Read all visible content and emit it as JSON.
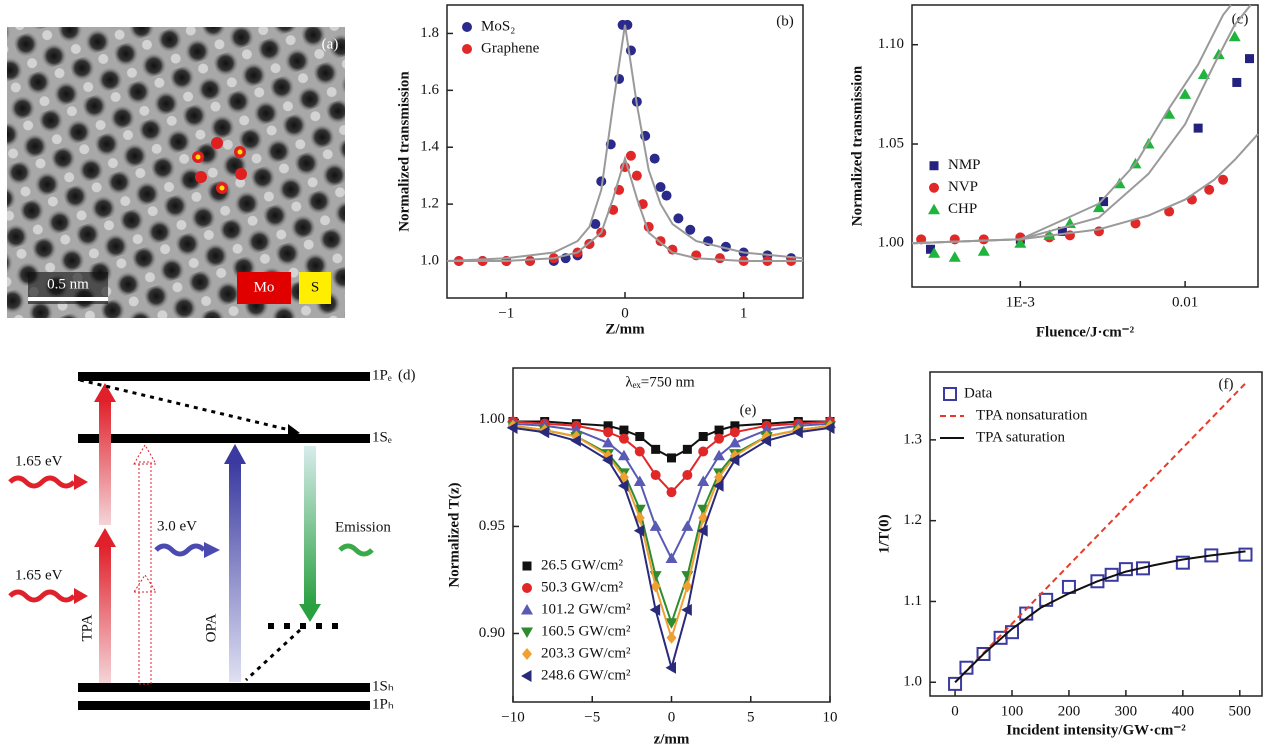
{
  "image_panel": {
    "label": "(a)",
    "scale_bar": "0.5 nm",
    "legend": [
      "Mo",
      "S"
    ]
  },
  "diagram_panel": {
    "label": "(d)",
    "levels": [
      "1Pₑ",
      "1Sₑ",
      "1Sₕ",
      "1Pₕ"
    ],
    "annotations": [
      "1.65 eV",
      "1.65 eV",
      "3.0 eV",
      "Emission",
      "TPA",
      "OPA"
    ]
  },
  "chart_data": [
    {
      "type": "scatter",
      "panel_label": "(b)",
      "x_label": "Z/mm",
      "y_label": "Normalized transmission",
      "xlim": [
        -1.5,
        1.5
      ],
      "xticks": [
        {
          "value": -1,
          "label": "−1"
        },
        0,
        1
      ],
      "ylim": [
        0.87,
        1.9
      ],
      "yticks": [
        {
          "value": 1,
          "label": "1.0"
        },
        1.2,
        1.4,
        1.6,
        1.8
      ],
      "legend": "upper left",
      "series": [
        {
          "name": "MoS₂",
          "color": "#2a2a8c",
          "marker": "circle",
          "x": [
            -1.4,
            -1.2,
            -1.0,
            -0.8,
            -0.6,
            -0.5,
            -0.4,
            -0.3,
            -0.25,
            -0.2,
            -0.12,
            -0.05,
            -0.02,
            0.02,
            0.05,
            0.1,
            0.17,
            0.25,
            0.3,
            0.35,
            0.45,
            0.55,
            0.7,
            0.85,
            1.0,
            1.2,
            1.4
          ],
          "values": [
            1.0,
            1.0,
            1.0,
            1.0,
            1.0,
            1.01,
            1.02,
            1.06,
            1.13,
            1.28,
            1.41,
            1.64,
            1.83,
            1.83,
            1.74,
            1.56,
            1.44,
            1.36,
            1.26,
            1.23,
            1.15,
            1.11,
            1.07,
            1.05,
            1.03,
            1.02,
            1.01
          ]
        },
        {
          "name": "Graphene",
          "color": "#e02828",
          "marker": "circle",
          "x": [
            -1.4,
            -1.2,
            -1.0,
            -0.8,
            -0.6,
            -0.4,
            -0.3,
            -0.2,
            -0.1,
            -0.05,
            0,
            0.05,
            0.1,
            0.15,
            0.2,
            0.3,
            0.4,
            0.6,
            0.8,
            1.0,
            1.2,
            1.4
          ],
          "values": [
            1.0,
            1.0,
            1.0,
            1.0,
            1.01,
            1.03,
            1.06,
            1.1,
            1.18,
            1.25,
            1.33,
            1.37,
            1.3,
            1.2,
            1.12,
            1.07,
            1.04,
            1.02,
            1.01,
            1.0,
            1.0,
            1.0
          ]
        },
        {
          "color": "#9a9a9a",
          "line": true,
          "x": [
            -1.5,
            -1,
            -0.6,
            -0.4,
            -0.3,
            -0.2,
            -0.1,
            0,
            0.1,
            0.2,
            0.3,
            0.4,
            0.6,
            1,
            1.5
          ],
          "values": [
            1.0,
            1.01,
            1.03,
            1.07,
            1.12,
            1.25,
            1.55,
            1.83,
            1.55,
            1.32,
            1.2,
            1.13,
            1.07,
            1.03,
            1.01
          ]
        },
        {
          "color": "#9a9a9a",
          "line": true,
          "x": [
            -1.5,
            -1,
            -0.6,
            -0.4,
            -0.2,
            -0.1,
            0,
            0.1,
            0.2,
            0.4,
            0.6,
            1,
            1.5
          ],
          "values": [
            1.0,
            1.0,
            1.01,
            1.03,
            1.1,
            1.22,
            1.36,
            1.22,
            1.1,
            1.03,
            1.01,
            1.0,
            1.0
          ]
        }
      ]
    },
    {
      "type": "scatter",
      "panel_label": "(c)",
      "x_label": "Fluence/J·cm⁻²",
      "y_label": "Normalized transmission",
      "xscale": "log",
      "xlim": [
        0.00022,
        0.0277
      ],
      "xticks": [
        {
          "value": 0.001,
          "label": "1E-3"
        },
        0.01
      ],
      "ylim": [
        0.978,
        1.12
      ],
      "yticks": [
        {
          "value": 1,
          "label": "1.00"
        },
        1.05,
        {
          "value": 1.1,
          "label": "1.10"
        }
      ],
      "legend": "center left",
      "series": [
        {
          "name": "NMP",
          "color": "#23237f",
          "marker": "square",
          "x": [
            0.000285,
            0.001,
            0.0018,
            0.0032,
            0.012,
            0.0206,
            0.0246
          ],
          "values": [
            0.997,
            1.002,
            1.006,
            1.021,
            1.058,
            1.081,
            1.093
          ]
        },
        {
          "name": "NVP",
          "color": "#e02828",
          "marker": "circle",
          "x": [
            0.00025,
            0.0004,
            0.0006,
            0.001,
            0.0015,
            0.002,
            0.003,
            0.005,
            0.008,
            0.011,
            0.014,
            0.017
          ],
          "values": [
            1.002,
            1.002,
            1.002,
            1.003,
            1.003,
            1.004,
            1.006,
            1.01,
            1.016,
            1.022,
            1.027,
            1.032
          ]
        },
        {
          "name": "CHP",
          "color": "#1fb43c",
          "marker": "triangle",
          "x": [
            0.0003,
            0.0004,
            0.0006,
            0.001,
            0.0015,
            0.002,
            0.003,
            0.004,
            0.005,
            0.006,
            0.008,
            0.01,
            0.013,
            0.016,
            0.02
          ],
          "values": [
            0.995,
            0.993,
            0.996,
            1.0,
            1.004,
            1.01,
            1.018,
            1.03,
            1.04,
            1.05,
            1.065,
            1.075,
            1.085,
            1.095,
            1.104
          ]
        },
        {
          "color": "#9a9a9a",
          "line": true,
          "x": [
            0.00022,
            0.001,
            0.003,
            0.005,
            0.008,
            0.012,
            0.017,
            0.019
          ],
          "values": [
            1.0,
            1.002,
            1.02,
            1.04,
            1.068,
            1.09,
            1.115,
            1.12
          ]
        },
        {
          "color": "#9a9a9a",
          "line": true,
          "x": [
            0.00022,
            0.001,
            0.003,
            0.006,
            0.01,
            0.015,
            0.02,
            0.025
          ],
          "values": [
            1.0,
            1.002,
            1.013,
            1.035,
            1.06,
            1.09,
            1.11,
            1.12
          ]
        },
        {
          "color": "#9a9a9a",
          "line": true,
          "x": [
            0.00022,
            0.001,
            0.003,
            0.006,
            0.01,
            0.015,
            0.02,
            0.0277
          ],
          "values": [
            1.0,
            1.002,
            1.007,
            1.014,
            1.022,
            1.032,
            1.042,
            1.055
          ]
        }
      ]
    },
    {
      "type": "line",
      "panel_label": "(e)",
      "annotation": "λₑₓ=750 nm",
      "x_label": "z/mm",
      "y_label": "Normalized T(z)",
      "xlim": [
        -10,
        10
      ],
      "xticks": [
        {
          "value": -10,
          "label": "−10"
        },
        {
          "value": -5,
          "label": "−5"
        },
        0,
        5,
        10
      ],
      "ylim": [
        0.868,
        1.024
      ],
      "yticks": [
        {
          "value": 0.9,
          "label": "0.90"
        },
        0.95,
        {
          "value": 1,
          "label": "1.00"
        }
      ],
      "legend": "lower left",
      "x": [
        -10,
        -8,
        -6,
        -4,
        -3,
        -2,
        -1,
        0,
        1,
        2,
        3,
        4,
        6,
        8,
        10
      ],
      "series": [
        {
          "name": "26.5 GW/cm²",
          "color": "#111111",
          "marker": "square",
          "values": [
            0.999,
            0.999,
            0.998,
            0.997,
            0.995,
            0.992,
            0.986,
            0.982,
            0.986,
            0.992,
            0.995,
            0.997,
            0.998,
            0.999,
            0.999
          ]
        },
        {
          "name": "50.3 GW/cm²",
          "color": "#e02828",
          "marker": "circle",
          "values": [
            0.999,
            0.998,
            0.997,
            0.994,
            0.991,
            0.985,
            0.974,
            0.966,
            0.974,
            0.985,
            0.991,
            0.994,
            0.997,
            0.998,
            0.999
          ]
        },
        {
          "name": "101.2 GW/cm²",
          "color": "#5a5ab4",
          "marker": "triangle",
          "values": [
            0.998,
            0.997,
            0.995,
            0.989,
            0.983,
            0.971,
            0.95,
            0.935,
            0.95,
            0.971,
            0.983,
            0.989,
            0.995,
            0.997,
            0.998
          ]
        },
        {
          "name": "160.5 GW/cm²",
          "color": "#2e8b2e",
          "marker": "triangle-down",
          "values": [
            0.997,
            0.995,
            0.992,
            0.984,
            0.975,
            0.958,
            0.927,
            0.905,
            0.927,
            0.958,
            0.975,
            0.984,
            0.992,
            0.995,
            0.997
          ]
        },
        {
          "name": "203.3 GW/cm²",
          "color": "#f0a030",
          "marker": "diamond",
          "values": [
            0.997,
            0.995,
            0.992,
            0.983,
            0.973,
            0.954,
            0.922,
            0.898,
            0.922,
            0.954,
            0.973,
            0.983,
            0.992,
            0.995,
            0.997
          ]
        },
        {
          "name": "248.6 GW/cm²",
          "color": "#2a2a7a",
          "marker": "triangle-left",
          "values": [
            0.996,
            0.994,
            0.99,
            0.981,
            0.969,
            0.948,
            0.911,
            0.884,
            0.911,
            0.948,
            0.969,
            0.981,
            0.99,
            0.994,
            0.996
          ]
        }
      ]
    },
    {
      "type": "scatter",
      "panel_label": "(f)",
      "x_label": "Incident intensity/GW·cm⁻²",
      "y_label": "1/T(0)",
      "xlim": [
        -44,
        539
      ],
      "xticks": [
        0,
        100,
        200,
        300,
        400,
        500
      ],
      "ylim": [
        0.983,
        1.384
      ],
      "yticks": [
        {
          "value": 1,
          "label": "1.0"
        },
        1.1,
        1.2,
        1.3
      ],
      "legend": "upper left",
      "series": [
        {
          "name": "Data",
          "color": "#3a3aa0",
          "marker": "open-square",
          "x": [
            0,
            20,
            50,
            80,
            100,
            125,
            160,
            200,
            250,
            275,
            300,
            330,
            400,
            450,
            510
          ],
          "values": [
            0.998,
            1.018,
            1.035,
            1.055,
            1.062,
            1.085,
            1.102,
            1.118,
            1.125,
            1.133,
            1.14,
            1.141,
            1.148,
            1.157,
            1.158
          ]
        },
        {
          "name": "TPA  nonsaturation",
          "color": "#e83a2a",
          "line": true,
          "dash": true,
          "x": [
            0,
            510
          ],
          "values": [
            1.0,
            1.37
          ]
        },
        {
          "name": "TPA  saturation",
          "color": "#111111",
          "line": true,
          "x": [
            0,
            50,
            100,
            150,
            200,
            250,
            300,
            350,
            400,
            450,
            510
          ],
          "values": [
            1.0,
            1.035,
            1.066,
            1.092,
            1.11,
            1.125,
            1.137,
            1.145,
            1.152,
            1.157,
            1.162
          ]
        }
      ]
    }
  ]
}
